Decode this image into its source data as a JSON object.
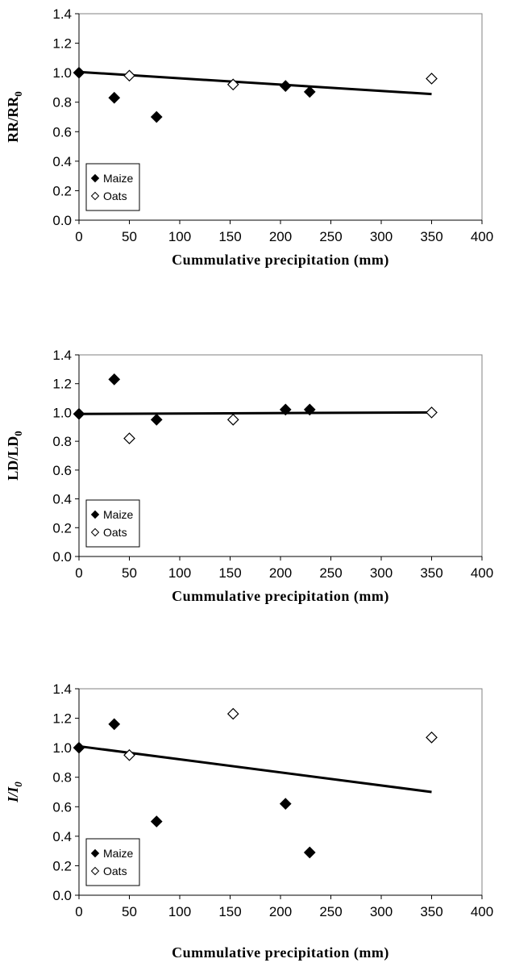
{
  "chart_data": [
    {
      "type": "scatter",
      "xlabel": "Cummulative precipitation (mm)",
      "ylabel_main": "RR/RR",
      "ylabel_sub": "0",
      "ylabel_italic": false,
      "xlim": [
        0,
        400
      ],
      "ylim": [
        0.0,
        1.4
      ],
      "xticks": [
        "0",
        "50",
        "100",
        "150",
        "200",
        "250",
        "300",
        "350",
        "400"
      ],
      "yticks": [
        "0.0",
        "0.2",
        "0.4",
        "0.6",
        "0.8",
        "1.0",
        "1.2",
        "1.4"
      ],
      "legend": [
        "Maize",
        "Oats"
      ],
      "series": [
        {
          "name": "Maize",
          "marker": "filled-diamond",
          "x": [
            0,
            35,
            77,
            205,
            229
          ],
          "y": [
            1.0,
            0.83,
            0.7,
            0.91,
            0.87
          ]
        },
        {
          "name": "Oats",
          "marker": "open-diamond",
          "x": [
            50,
            153,
            350
          ],
          "y": [
            0.98,
            0.92,
            0.96
          ]
        }
      ],
      "trendline": {
        "x": [
          0,
          350
        ],
        "y": [
          1.005,
          0.855
        ]
      }
    },
    {
      "type": "scatter",
      "xlabel": "Cummulative precipitation (mm)",
      "ylabel_main": "LD/LD",
      "ylabel_sub": "0",
      "ylabel_italic": false,
      "xlim": [
        0,
        400
      ],
      "ylim": [
        0.0,
        1.4
      ],
      "xticks": [
        "0",
        "50",
        "100",
        "150",
        "200",
        "250",
        "300",
        "350",
        "400"
      ],
      "yticks": [
        "0.0",
        "0.2",
        "0.4",
        "0.6",
        "0.8",
        "1.0",
        "1.2",
        "1.4"
      ],
      "legend": [
        "Maize",
        "Oats"
      ],
      "series": [
        {
          "name": "Maize",
          "marker": "filled-diamond",
          "x": [
            0,
            35,
            77,
            205,
            229
          ],
          "y": [
            0.99,
            1.23,
            0.95,
            1.02,
            1.02
          ]
        },
        {
          "name": "Oats",
          "marker": "open-diamond",
          "x": [
            50,
            153,
            350
          ],
          "y": [
            0.82,
            0.95,
            1.0
          ]
        }
      ],
      "trendline": {
        "x": [
          0,
          350
        ],
        "y": [
          0.99,
          1.0
        ]
      }
    },
    {
      "type": "scatter",
      "xlabel": "Cummulative precipitation (mm)",
      "ylabel_main": "I/I",
      "ylabel_sub": "0",
      "ylabel_italic": true,
      "xlim": [
        0,
        400
      ],
      "ylim": [
        0.0,
        1.4
      ],
      "xticks": [
        "0",
        "50",
        "100",
        "150",
        "200",
        "250",
        "300",
        "350",
        "400"
      ],
      "yticks": [
        "0.0",
        "0.2",
        "0.4",
        "0.6",
        "0.8",
        "1.0",
        "1.2",
        "1.4"
      ],
      "legend": [
        "Maize",
        "Oats"
      ],
      "series": [
        {
          "name": "Maize",
          "marker": "filled-diamond",
          "x": [
            0,
            35,
            77,
            205,
            229
          ],
          "y": [
            1.0,
            1.16,
            0.5,
            0.62,
            0.29
          ]
        },
        {
          "name": "Oats",
          "marker": "open-diamond",
          "x": [
            50,
            153,
            350
          ],
          "y": [
            0.95,
            1.23,
            1.07
          ]
        }
      ],
      "trendline": {
        "x": [
          0,
          350
        ],
        "y": [
          1.01,
          0.7
        ]
      }
    }
  ]
}
